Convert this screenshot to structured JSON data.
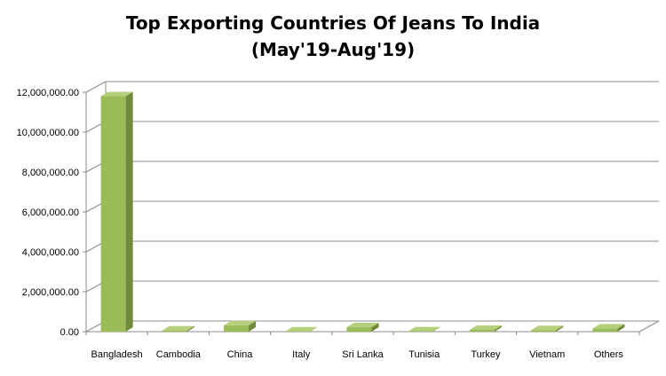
{
  "chart_data": {
    "type": "bar",
    "title": "Top Exporting Countries Of Jeans To India",
    "subtitle": "(May'19-Aug'19)",
    "xlabel": "",
    "ylabel": "",
    "categories": [
      "Bangladesh",
      "Cambodia",
      "China",
      "Italy",
      "Sri Lanka",
      "Tunisia",
      "Turkey",
      "Vietnam",
      "Others"
    ],
    "values": [
      11800000,
      60000,
      320000,
      10000,
      220000,
      15000,
      90000,
      80000,
      160000
    ],
    "ylim": [
      0,
      12000000
    ],
    "yticks": [
      0,
      2000000,
      4000000,
      6000000,
      8000000,
      10000000,
      12000000
    ],
    "ytick_labels": [
      "0.00",
      "2,000,000.00",
      "4,000,000.00",
      "6,000,000.00",
      "8,000,000.00",
      "10,000,000.00",
      "12,000,000.00"
    ],
    "grid": true,
    "legend": "none",
    "colors": {
      "bar_front": "#9BBB59",
      "bar_side": "#6E8A3A",
      "bar_top": "#B5D07A",
      "gridline": "#8C8C8C",
      "axis": "#8C8C8C"
    }
  }
}
